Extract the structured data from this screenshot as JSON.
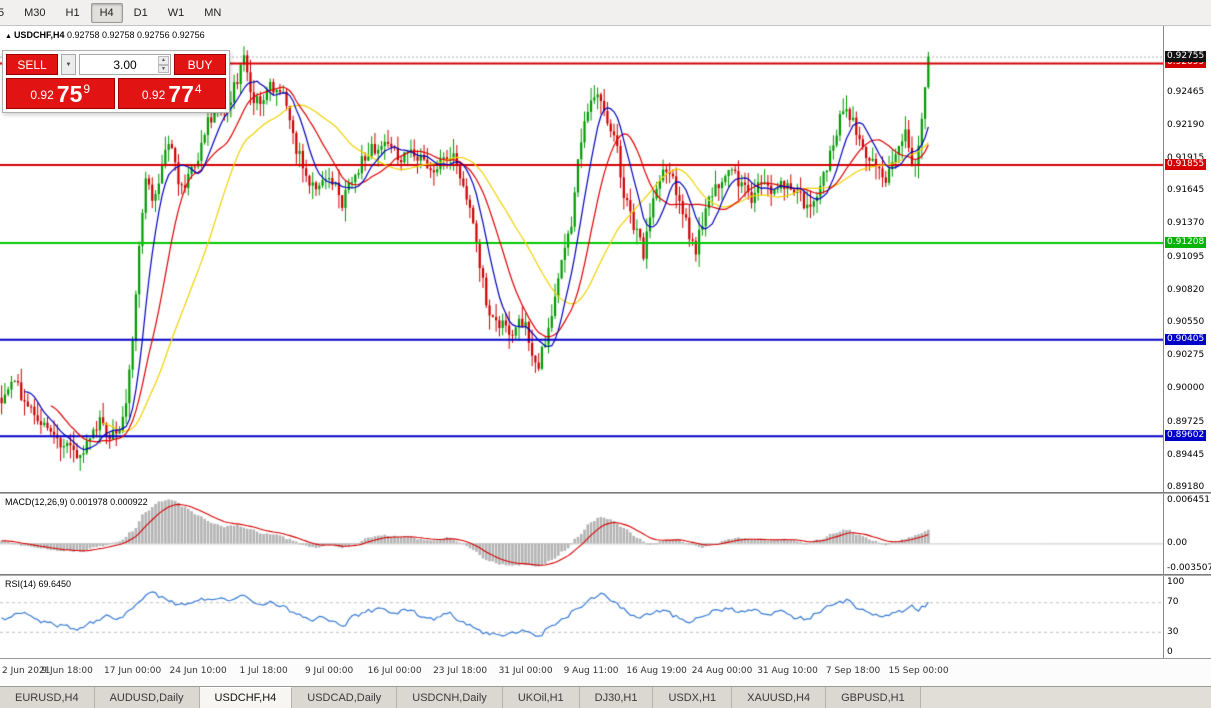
{
  "toolbar": {
    "items": [
      {
        "label": "5",
        "clipped": true
      },
      {
        "label": "M30"
      },
      {
        "label": "H1"
      },
      {
        "label": "H4"
      },
      {
        "label": "D1"
      },
      {
        "label": "W1"
      },
      {
        "label": "MN"
      }
    ],
    "active": "H4"
  },
  "chart": {
    "title_symbol": "USDCHF,H4",
    "title_ohlc": "0.92758 0.92758 0.92756 0.92756"
  },
  "trade_panel": {
    "sell_label": "SELL",
    "buy_label": "BUY",
    "volume": "3.00",
    "bid": {
      "main": "0.92",
      "pips": "75",
      "sup": "9"
    },
    "ask": {
      "main": "0.92",
      "pips": "77",
      "sup": "4"
    }
  },
  "price_axis": {
    "scale_labels": [
      {
        "t": "0.92465",
        "v": 0.92465
      },
      {
        "t": "0.92190",
        "v": 0.9219
      },
      {
        "t": "0.91915",
        "v": 0.91915
      },
      {
        "t": "0.91645",
        "v": 0.91645
      },
      {
        "t": "0.91370",
        "v": 0.9137
      },
      {
        "t": "0.91095",
        "v": 0.91095
      },
      {
        "t": "0.90820",
        "v": 0.9082
      },
      {
        "t": "0.90550",
        "v": 0.9055
      },
      {
        "t": "0.90275",
        "v": 0.90275
      },
      {
        "t": "0.90000",
        "v": 0.9
      },
      {
        "t": "0.89725",
        "v": 0.89725
      },
      {
        "t": "0.89445",
        "v": 0.89445
      },
      {
        "t": "0.89180",
        "v": 0.8918
      }
    ],
    "line_tags": [
      {
        "t": "0.92699",
        "v": 0.92699,
        "bg": "#d40000"
      },
      {
        "t": "0.91855",
        "v": 0.91855,
        "bg": "#d40000"
      },
      {
        "t": "0.91208",
        "v": 0.91208,
        "bg": "#00b400"
      },
      {
        "t": "0.90405",
        "v": 0.90405,
        "bg": "#0000c8"
      },
      {
        "t": "0.89602",
        "v": 0.89602,
        "bg": "#0000c8"
      }
    ],
    "current_tag": {
      "t": "0.92755",
      "v": 0.92755,
      "bg": "#111111"
    }
  },
  "macd": {
    "label": "MACD(12,26,9)",
    "value_main": "0.001978",
    "value_signal": "0.000922",
    "axis_labels": [
      {
        "t": "0.006451",
        "v": 0.006451
      },
      {
        "t": "0.00",
        "v": 0
      },
      {
        "t": "-0.003507",
        "v": -0.003507
      }
    ]
  },
  "rsi": {
    "label": "RSI(14)",
    "value": "69.6450",
    "axis_labels": [
      {
        "t": "100",
        "v": 100
      },
      {
        "t": "70",
        "v": 70
      },
      {
        "t": "30",
        "v": 30
      },
      {
        "t": "0",
        "v": 0
      }
    ]
  },
  "x_axis": {
    "labels": [
      {
        "t": "2 Jun 2021",
        "i": 0
      },
      {
        "t": "9 Jun 18:00",
        "i": 20
      },
      {
        "t": "17 Jun 00:00",
        "i": 40
      },
      {
        "t": "24 Jun 10:00",
        "i": 60
      },
      {
        "t": "1 Jul 18:00",
        "i": 80
      },
      {
        "t": "9 Jul 00:00",
        "i": 100
      },
      {
        "t": "16 Jul 00:00",
        "i": 120
      },
      {
        "t": "23 Jul 18:00",
        "i": 140
      },
      {
        "t": "31 Jul 00:00",
        "i": 160
      },
      {
        "t": "9 Aug 11:00",
        "i": 180
      },
      {
        "t": "16 Aug 19:00",
        "i": 200
      },
      {
        "t": "24 Aug 00:00",
        "i": 220
      },
      {
        "t": "31 Aug 10:00",
        "i": 240
      },
      {
        "t": "7 Sep 18:00",
        "i": 260
      },
      {
        "t": "15 Sep 00:00",
        "i": 280
      }
    ]
  },
  "bottom_tabs": [
    {
      "label": "EURUSD,H4"
    },
    {
      "label": "AUDUSD,Daily"
    },
    {
      "label": "USDCHF,H4",
      "active": true
    },
    {
      "label": "USDCAD,Daily"
    },
    {
      "label": "USDCNH,Daily"
    },
    {
      "label": "UKOil,H1"
    },
    {
      "label": "DJ30,H1"
    },
    {
      "label": "USDX,H1"
    },
    {
      "label": "XAUUSD,H4"
    },
    {
      "label": "GBPUSD,H1"
    }
  ],
  "chart_data": {
    "type": "candlestick",
    "symbol": "USDCHF",
    "timeframe": "H4",
    "candle_count": 284,
    "current_price": 0.92756,
    "price_range": {
      "min": 0.8914,
      "max": 0.9301
    },
    "h_lines": [
      {
        "price": 0.92699,
        "color": "#d40000",
        "width": 2
      },
      {
        "price": 0.91855,
        "color": "#d40000",
        "width": 2
      },
      {
        "price": 0.91208,
        "color": "#00c800",
        "width": 2
      },
      {
        "price": 0.90405,
        "color": "#0000c8",
        "width": 2
      },
      {
        "price": 0.89602,
        "color": "#0000c8",
        "width": 2
      }
    ],
    "moving_averages": [
      {
        "period": 8,
        "color": "#0000bb"
      },
      {
        "period": 16,
        "color": "#dd0000"
      },
      {
        "period": 32,
        "color": "#efd200"
      }
    ],
    "price_anchors": [
      [
        0,
        0.8992
      ],
      [
        4,
        0.9002
      ],
      [
        8,
        0.8988
      ],
      [
        12,
        0.8975
      ],
      [
        16,
        0.8962
      ],
      [
        20,
        0.895
      ],
      [
        24,
        0.8944
      ],
      [
        27,
        0.8958
      ],
      [
        30,
        0.8975
      ],
      [
        33,
        0.8962
      ],
      [
        36,
        0.8968
      ],
      [
        38,
        0.8985
      ],
      [
        40,
        0.904
      ],
      [
        42,
        0.912
      ],
      [
        44,
        0.9175
      ],
      [
        46,
        0.9155
      ],
      [
        48,
        0.917
      ],
      [
        50,
        0.9195
      ],
      [
        52,
        0.9205
      ],
      [
        54,
        0.9175
      ],
      [
        56,
        0.9168
      ],
      [
        58,
        0.918
      ],
      [
        60,
        0.9192
      ],
      [
        63,
        0.922
      ],
      [
        66,
        0.9238
      ],
      [
        69,
        0.9232
      ],
      [
        72,
        0.9255
      ],
      [
        74,
        0.9272
      ],
      [
        76,
        0.9245
      ],
      [
        78,
        0.9238
      ],
      [
        80,
        0.924
      ],
      [
        82,
        0.9252
      ],
      [
        84,
        0.925
      ],
      [
        86,
        0.9242
      ],
      [
        88,
        0.922
      ],
      [
        90,
        0.92
      ],
      [
        93,
        0.9175
      ],
      [
        96,
        0.9168
      ],
      [
        98,
        0.9172
      ],
      [
        100,
        0.918
      ],
      [
        102,
        0.9166
      ],
      [
        104,
        0.9155
      ],
      [
        107,
        0.9172
      ],
      [
        110,
        0.9188
      ],
      [
        113,
        0.9198
      ],
      [
        116,
        0.9205
      ],
      [
        119,
        0.9198
      ],
      [
        122,
        0.9192
      ],
      [
        125,
        0.92
      ],
      [
        128,
        0.919
      ],
      [
        131,
        0.918
      ],
      [
        134,
        0.9188
      ],
      [
        137,
        0.9196
      ],
      [
        140,
        0.9178
      ],
      [
        142,
        0.9162
      ],
      [
        144,
        0.9135
      ],
      [
        146,
        0.9102
      ],
      [
        148,
        0.9072
      ],
      [
        150,
        0.9058
      ],
      [
        153,
        0.9052
      ],
      [
        156,
        0.9046
      ],
      [
        158,
        0.9055
      ],
      [
        160,
        0.905
      ],
      [
        162,
        0.9032
      ],
      [
        164,
        0.902
      ],
      [
        166,
        0.904
      ],
      [
        168,
        0.9062
      ],
      [
        170,
        0.9088
      ],
      [
        172,
        0.9115
      ],
      [
        174,
        0.9138
      ],
      [
        176,
        0.9185
      ],
      [
        178,
        0.922
      ],
      [
        180,
        0.9238
      ],
      [
        182,
        0.9242
      ],
      [
        184,
        0.9228
      ],
      [
        186,
        0.9212
      ],
      [
        188,
        0.9198
      ],
      [
        190,
        0.9162
      ],
      [
        192,
        0.9142
      ],
      [
        194,
        0.913
      ],
      [
        196,
        0.9112
      ],
      [
        198,
        0.9145
      ],
      [
        200,
        0.9162
      ],
      [
        202,
        0.9178
      ],
      [
        204,
        0.9182
      ],
      [
        206,
        0.916
      ],
      [
        208,
        0.9145
      ],
      [
        210,
        0.9128
      ],
      [
        212,
        0.9115
      ],
      [
        214,
        0.9138
      ],
      [
        216,
        0.9155
      ],
      [
        218,
        0.9165
      ],
      [
        220,
        0.9172
      ],
      [
        223,
        0.9178
      ],
      [
        226,
        0.9168
      ],
      [
        229,
        0.9158
      ],
      [
        232,
        0.9172
      ],
      [
        235,
        0.9165
      ],
      [
        238,
        0.917
      ],
      [
        240,
        0.9172
      ],
      [
        243,
        0.916
      ],
      [
        246,
        0.9152
      ],
      [
        249,
        0.9162
      ],
      [
        252,
        0.9185
      ],
      [
        255,
        0.9215
      ],
      [
        257,
        0.9235
      ],
      [
        259,
        0.9228
      ],
      [
        261,
        0.9215
      ],
      [
        263,
        0.92
      ],
      [
        265,
        0.919
      ],
      [
        267,
        0.9182
      ],
      [
        270,
        0.9172
      ],
      [
        272,
        0.9185
      ],
      [
        274,
        0.92
      ],
      [
        276,
        0.921
      ],
      [
        277,
        0.9195
      ],
      [
        278,
        0.9183
      ],
      [
        279,
        0.9188
      ],
      [
        280,
        0.9205
      ],
      [
        281,
        0.9228
      ],
      [
        282,
        0.9252
      ],
      [
        283,
        0.9274
      ]
    ],
    "macd": {
      "range": {
        "min": -0.0044,
        "max": 0.0071
      },
      "signal_period": 9,
      "anchors": [
        [
          0,
          0.0004
        ],
        [
          8,
          -0.0004
        ],
        [
          16,
          -0.001
        ],
        [
          24,
          -0.0012
        ],
        [
          30,
          -0.0004
        ],
        [
          36,
          0.0002
        ],
        [
          40,
          0.0018
        ],
        [
          44,
          0.0045
        ],
        [
          48,
          0.006
        ],
        [
          52,
          0.0063
        ],
        [
          56,
          0.0052
        ],
        [
          60,
          0.004
        ],
        [
          64,
          0.003
        ],
        [
          68,
          0.0024
        ],
        [
          72,
          0.0026
        ],
        [
          76,
          0.002
        ],
        [
          80,
          0.0014
        ],
        [
          84,
          0.0012
        ],
        [
          88,
          0.0006
        ],
        [
          92,
          -0.0002
        ],
        [
          96,
          -0.0006
        ],
        [
          100,
          -0.0002
        ],
        [
          104,
          -0.0006
        ],
        [
          108,
          0.0
        ],
        [
          112,
          0.0008
        ],
        [
          116,
          0.0012
        ],
        [
          120,
          0.001
        ],
        [
          124,
          0.001
        ],
        [
          128,
          0.0006
        ],
        [
          132,
          0.0004
        ],
        [
          136,
          0.0008
        ],
        [
          140,
          0.0002
        ],
        [
          144,
          -0.001
        ],
        [
          148,
          -0.0024
        ],
        [
          152,
          -0.003
        ],
        [
          156,
          -0.0032
        ],
        [
          160,
          -0.003
        ],
        [
          164,
          -0.0034
        ],
        [
          168,
          -0.0024
        ],
        [
          172,
          -0.001
        ],
        [
          176,
          0.001
        ],
        [
          180,
          0.003
        ],
        [
          183,
          0.0038
        ],
        [
          186,
          0.0034
        ],
        [
          190,
          0.0022
        ],
        [
          194,
          0.0008
        ],
        [
          198,
          -0.0002
        ],
        [
          202,
          0.0004
        ],
        [
          206,
          0.0006
        ],
        [
          210,
          -0.0002
        ],
        [
          214,
          -0.0006
        ],
        [
          218,
          0.0
        ],
        [
          222,
          0.0006
        ],
        [
          226,
          0.0008
        ],
        [
          230,
          0.0006
        ],
        [
          234,
          0.0004
        ],
        [
          238,
          0.0006
        ],
        [
          242,
          0.0004
        ],
        [
          246,
          0.0
        ],
        [
          250,
          0.0006
        ],
        [
          254,
          0.0014
        ],
        [
          258,
          0.002
        ],
        [
          262,
          0.0012
        ],
        [
          266,
          0.0004
        ],
        [
          270,
          -0.0002
        ],
        [
          274,
          0.0004
        ],
        [
          278,
          0.001
        ],
        [
          281,
          0.0015
        ],
        [
          283,
          0.00198
        ]
      ]
    },
    "rsi": {
      "range": {
        "min": 0,
        "max": 100
      },
      "levels": [
        70,
        30
      ],
      "anchors": [
        [
          0,
          48
        ],
        [
          6,
          56
        ],
        [
          12,
          44
        ],
        [
          18,
          38
        ],
        [
          24,
          34
        ],
        [
          28,
          44
        ],
        [
          32,
          52
        ],
        [
          36,
          48
        ],
        [
          40,
          62
        ],
        [
          44,
          78
        ],
        [
          46,
          82
        ],
        [
          50,
          74
        ],
        [
          54,
          66
        ],
        [
          58,
          70
        ],
        [
          62,
          74
        ],
        [
          66,
          76
        ],
        [
          70,
          72
        ],
        [
          74,
          78
        ],
        [
          78,
          66
        ],
        [
          82,
          70
        ],
        [
          86,
          64
        ],
        [
          90,
          54
        ],
        [
          94,
          46
        ],
        [
          98,
          50
        ],
        [
          102,
          42
        ],
        [
          104,
          38
        ],
        [
          108,
          52
        ],
        [
          112,
          58
        ],
        [
          116,
          62
        ],
        [
          120,
          56
        ],
        [
          124,
          60
        ],
        [
          128,
          52
        ],
        [
          132,
          48
        ],
        [
          136,
          56
        ],
        [
          140,
          46
        ],
        [
          144,
          36
        ],
        [
          148,
          28
        ],
        [
          152,
          26
        ],
        [
          156,
          30
        ],
        [
          160,
          32
        ],
        [
          164,
          24
        ],
        [
          168,
          38
        ],
        [
          172,
          50
        ],
        [
          176,
          62
        ],
        [
          180,
          74
        ],
        [
          183,
          80
        ],
        [
          186,
          74
        ],
        [
          190,
          60
        ],
        [
          194,
          48
        ],
        [
          198,
          54
        ],
        [
          202,
          60
        ],
        [
          206,
          50
        ],
        [
          210,
          42
        ],
        [
          214,
          52
        ],
        [
          218,
          58
        ],
        [
          222,
          62
        ],
        [
          226,
          56
        ],
        [
          230,
          60
        ],
        [
          234,
          54
        ],
        [
          238,
          58
        ],
        [
          242,
          50
        ],
        [
          246,
          48
        ],
        [
          250,
          58
        ],
        [
          254,
          68
        ],
        [
          258,
          72
        ],
        [
          262,
          60
        ],
        [
          266,
          54
        ],
        [
          270,
          50
        ],
        [
          274,
          58
        ],
        [
          278,
          64
        ],
        [
          280,
          60
        ],
        [
          282,
          66
        ],
        [
          283,
          69.6
        ]
      ]
    },
    "colors": {
      "up": "#009a00",
      "down": "#cc0000",
      "background": "#ffffff",
      "macd_hist": "#b4b4b4",
      "macd_signal": "#d40000",
      "rsi_line": "#3a7bd5",
      "current_price_line": "#b0b0b0",
      "level_line": "#c0c0c0"
    }
  }
}
